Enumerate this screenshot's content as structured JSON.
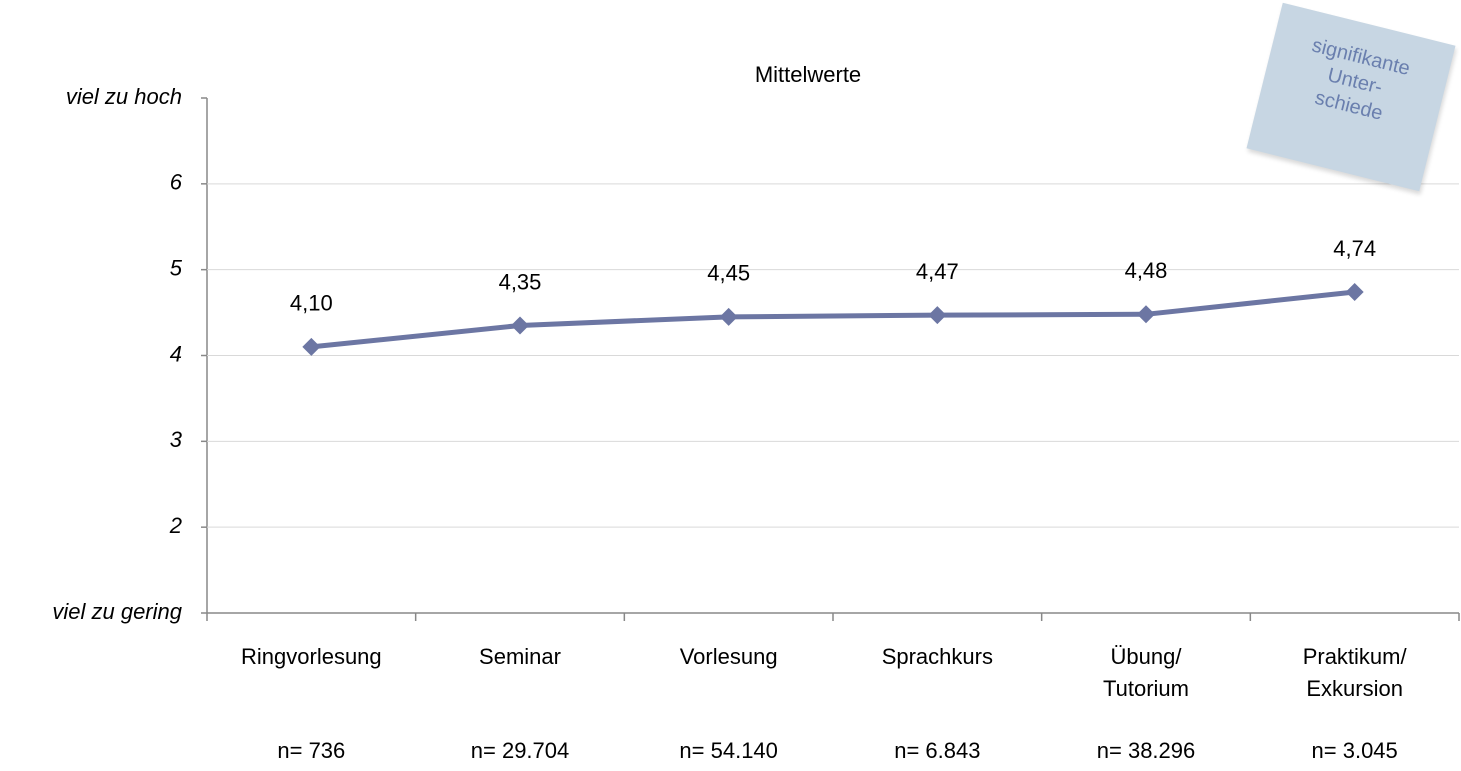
{
  "chart_data": {
    "type": "line",
    "title": "Mittelwerte",
    "categories": [
      "Ringvorlesung",
      "Seminar",
      "Vorlesung",
      "Sprachkurs",
      "Übung/\nTutorium",
      "Praktikum/\nExkursion"
    ],
    "values": [
      4.1,
      4.35,
      4.45,
      4.47,
      4.48,
      4.74
    ],
    "value_labels": [
      "4,10",
      "4,35",
      "4,45",
      "4,47",
      "4,48",
      "4,74"
    ],
    "sample_sizes": [
      "n= 736",
      "n= 29.704",
      "n= 54.140",
      "n= 6.843",
      "n= 38.296",
      "n= 3.045"
    ],
    "note": "signifikante\nUnter-\nschiede",
    "color": "#6c76a3",
    "ylim": [
      1,
      7
    ],
    "yticks": [
      {
        "value": 1,
        "label": "viel zu gering"
      },
      2,
      3,
      4,
      5,
      6,
      {
        "value": 7,
        "label": "viel zu hoch"
      }
    ],
    "grid": true
  }
}
